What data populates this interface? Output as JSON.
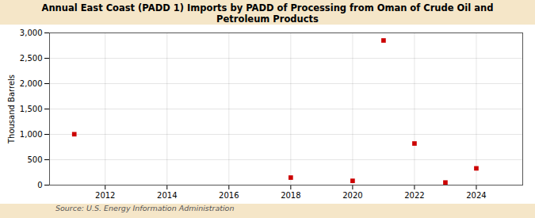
{
  "chart_data": {
    "type": "scatter",
    "title": "Annual East Coast (PADD 1) Imports by PADD of Processing from Oman of Crude Oil and\nPetroleum Products",
    "ylabel": "Thousand Barrels",
    "source": "Source: U.S. Energy Information Administration",
    "x": [
      2011,
      2018,
      2020,
      2021,
      2022,
      2023,
      2024
    ],
    "values": [
      1003,
      148,
      84,
      2851,
      820,
      51,
      330
    ],
    "color": "#cc0000",
    "marker": "square",
    "xlim": [
      2010.2,
      2025.5
    ],
    "ylim": [
      0,
      3000
    ],
    "xticks": [
      2012,
      2014,
      2016,
      2018,
      2020,
      2022,
      2024
    ],
    "yticks": [
      0,
      500,
      {
        "value": 1000,
        "label": "1,000"
      },
      {
        "value": 1500,
        "label": "1,500"
      },
      {
        "value": 2000,
        "label": "2,000"
      },
      {
        "value": 2500,
        "label": "2,500"
      },
      {
        "value": 3000,
        "label": "3,000"
      }
    ],
    "grid": true
  }
}
